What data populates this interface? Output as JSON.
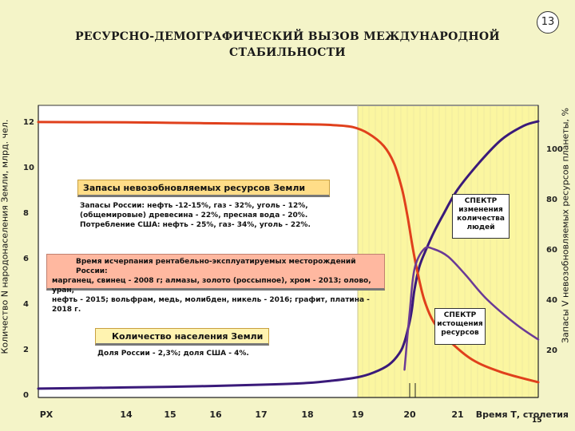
{
  "slide": {
    "title_line1": "РЕСУРСНО-ДЕМОГРАФИЧЕСКИЙ ВЫЗОВ МЕЖДУНАРОДНОЙ",
    "title_line2": "СТАБИЛЬНОСТИ",
    "number": "13"
  },
  "colors": {
    "population": "#3a1a7a",
    "resources": "#e0401c",
    "spectrum_fill": "#fbf6a0",
    "spectrum_line": "#e8e4a0"
  },
  "chart_data": {
    "type": "line",
    "xlabel": "Время Т, столетия",
    "x_ticks": [
      "PX",
      "14",
      "15",
      "16",
      "17",
      "18",
      "19",
      "20",
      "21"
    ],
    "ylabel_left": "Количество N народонаселения Земли, млрд. чел.",
    "y_left_ticks": [
      "0",
      "2",
      "4",
      "6",
      "8",
      "10",
      "12"
    ],
    "ylim_left": [
      0,
      12
    ],
    "ylabel_right": "Запасы V невозобновляемых ресурсов планеты, %",
    "y_right_ticks": [
      "20",
      "40",
      "60",
      "80",
      "100"
    ],
    "ylim_right": [
      0,
      120
    ],
    "series": [
      {
        "axis": "left",
        "color": "#3a1a7a",
        "x": [
          13.0,
          14.0,
          15.0,
          16.0,
          17.0,
          18.0,
          18.5,
          19.0,
          19.3,
          19.6,
          19.8,
          19.9,
          20.0,
          20.05,
          20.1,
          20.2,
          20.35,
          20.5,
          20.7,
          21.0,
          21.3,
          21.6,
          21.9,
          22.1
        ],
        "y": [
          0.25,
          0.3,
          0.33,
          0.37,
          0.42,
          0.5,
          0.6,
          0.75,
          0.95,
          1.3,
          1.8,
          2.3,
          3.2,
          3.8,
          4.6,
          5.6,
          6.4,
          7.1,
          7.9,
          9.0,
          10.2,
          11.2,
          11.8,
          12.0
        ]
      },
      {
        "axis": "right",
        "color": "#e0401c",
        "x": [
          13.0,
          14.0,
          15.0,
          16.0,
          17.0,
          18.0,
          18.5,
          18.9,
          19.2,
          19.5,
          19.7,
          19.85,
          19.95,
          20.05,
          20.15,
          20.3,
          20.5,
          20.8,
          21.2,
          21.6,
          22.1
        ],
        "y": [
          110.5,
          110.4,
          110.2,
          110.0,
          109.8,
          109.6,
          109.3,
          108.5,
          106,
          101,
          94,
          84,
          74,
          62,
          52,
          40,
          31,
          24,
          16,
          11,
          7
        ]
      },
      {
        "axis": "right",
        "color": "#6a3a96",
        "x": [
          19.9,
          20.0,
          20.1,
          20.3,
          20.5,
          20.8,
          21.1,
          21.4,
          21.8,
          22.1
        ],
        "y": [
          12,
          35,
          52,
          60,
          60,
          57,
          50,
          40,
          30,
          24
        ]
      }
    ],
    "spectrum_band": {
      "x_from": 19,
      "x_to": 22.1
    }
  },
  "annotations": {
    "reserves_title": "Запасы невозобновляемых ресурсов Земли",
    "reserves_line1": "Запасы России:   нефть -12-15%, газ - 32%, уголь - 12%,",
    "reserves_line2": "(общемировые)   древесина - 22%, пресная вода - 20%.",
    "reserves_line3": "Потребление США:  нефть - 25%, газ- 34%, уголь - 22%.",
    "depletion_line1": "Время исчерпания  рентабельно-эксплуатируемых месторождений России:",
    "depletion_line2": "марганец, свинец - 2008 г; алмазы, золото (россыпное), хром - 2013; олово, уран,",
    "depletion_line3": "нефть - 2015; вольфрам, медь, молибден, никель - 2016; графит, платина - 2018 г.",
    "population_title": "Количество населения Земли",
    "population_share": "Доля России - 2,3%; доля США - 4%.",
    "spectrum_people_1": "СПЕКТР",
    "spectrum_people_2": "изменения",
    "spectrum_people_3": "количества",
    "spectrum_people_4": "людей",
    "spectrum_res_1": "СПЕКТР",
    "spectrum_res_2": "истощения",
    "spectrum_res_3": "ресурсов",
    "corner_tick": "15"
  }
}
